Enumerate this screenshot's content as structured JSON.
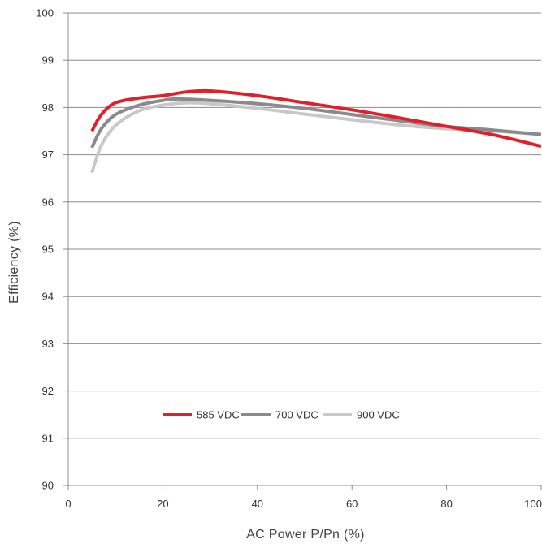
{
  "chart_data": {
    "type": "line",
    "title": "",
    "xlabel": "AC Power P/Pn (%)",
    "ylabel": "Efficiency (%)",
    "xlim": [
      0,
      100
    ],
    "ylim": [
      90,
      100
    ],
    "xticks": [
      0,
      20,
      40,
      60,
      80,
      100
    ],
    "yticks": [
      90,
      91,
      92,
      93,
      94,
      95,
      96,
      97,
      98,
      99,
      100
    ],
    "grid": "horizontal",
    "legend_position": "center",
    "series": [
      {
        "name": "585 VDC",
        "color": "#e0202a",
        "x": [
          5,
          7,
          10,
          15,
          20,
          25,
          30,
          40,
          50,
          60,
          70,
          80,
          90,
          100
        ],
        "y": [
          97.5,
          97.85,
          98.1,
          98.2,
          98.25,
          98.33,
          98.35,
          98.25,
          98.1,
          97.95,
          97.78,
          97.6,
          97.42,
          97.18
        ]
      },
      {
        "name": "700 VDC",
        "color": "#8a8a8c",
        "x": [
          5,
          7,
          10,
          15,
          20,
          23,
          30,
          40,
          50,
          60,
          70,
          80,
          90,
          100
        ],
        "y": [
          97.15,
          97.55,
          97.85,
          98.05,
          98.15,
          98.18,
          98.15,
          98.08,
          97.98,
          97.85,
          97.72,
          97.6,
          97.52,
          97.43
        ]
      },
      {
        "name": "900 VDC",
        "color": "#c8c8ca",
        "x": [
          5,
          7,
          10,
          15,
          20,
          25,
          30,
          40,
          50,
          60,
          70,
          80,
          90,
          100
        ],
        "y": [
          96.62,
          97.2,
          97.62,
          97.93,
          98.05,
          98.1,
          98.08,
          97.98,
          97.86,
          97.74,
          97.63,
          97.55,
          97.5,
          97.43
        ]
      }
    ]
  }
}
